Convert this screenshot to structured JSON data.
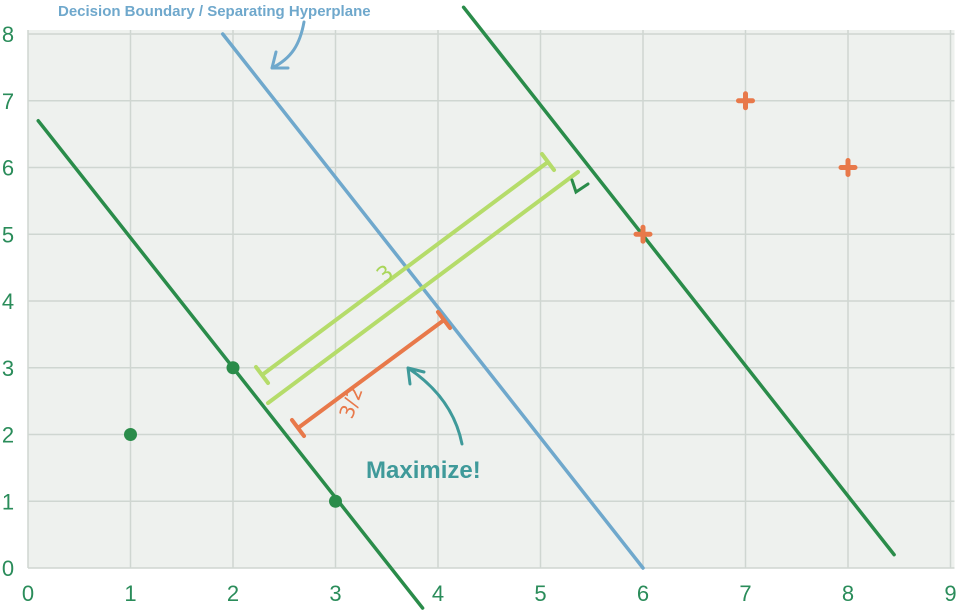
{
  "annotations": {
    "title": "Decision Boundary / Separating Hyperplane",
    "maximize": "Maximize!",
    "margin_label": "3",
    "half_margin_label": "3/2"
  },
  "colors": {
    "background": "#eef1ee",
    "grid": "#cfd6d1",
    "support_line": "#2a8c4a",
    "hyperplane": "#6fa8cc",
    "margin_bracket": "#b5dc6a",
    "half_margin": "#e8794a",
    "class_neg": "#2a8c4a",
    "class_pos": "#e8794a",
    "annotation_arrow": "#3f9a9a"
  },
  "chart_data": {
    "type": "scatter",
    "x_ticks": [
      "0",
      "1",
      "2",
      "3",
      "4",
      "5",
      "6",
      "7",
      "8",
      "9"
    ],
    "y_ticks": [
      "0",
      "1",
      "2",
      "3",
      "4",
      "5",
      "6",
      "7",
      "8"
    ],
    "xlim": [
      0,
      9
    ],
    "ylim": [
      0,
      8
    ],
    "grid": true,
    "series": [
      {
        "marker": "dot",
        "points": [
          [
            1,
            2
          ],
          [
            2,
            3
          ],
          [
            3,
            1
          ]
        ]
      },
      {
        "marker": "plus",
        "points": [
          [
            6,
            5
          ],
          [
            7,
            7
          ],
          [
            8,
            6
          ]
        ]
      }
    ],
    "lines": [
      {
        "role": "support-negative",
        "from": [
          0.1,
          6.7
        ],
        "to": [
          3.85,
          -0.6
        ]
      },
      {
        "role": "hyperplane",
        "from": [
          1.9,
          8.0
        ],
        "to": [
          6.0,
          0.0
        ]
      },
      {
        "role": "support-positive",
        "from": [
          4.25,
          8.4
        ],
        "to": [
          8.45,
          0.2
        ]
      }
    ]
  }
}
